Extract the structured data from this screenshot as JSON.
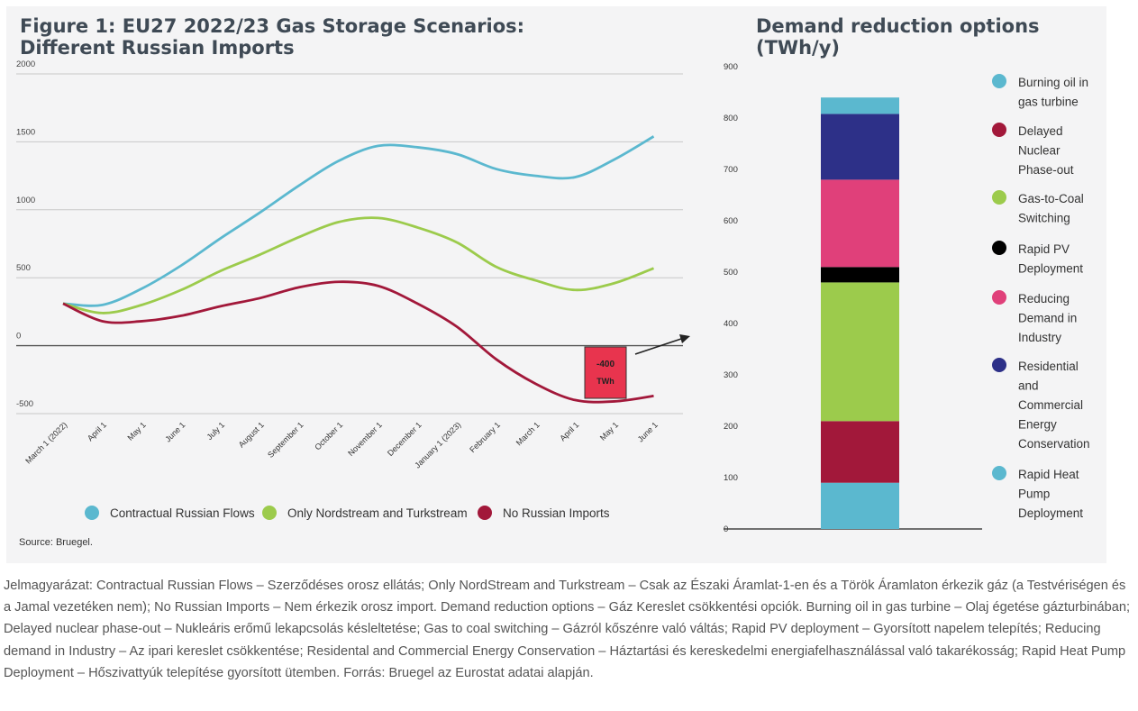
{
  "left_title_line1": "Figure 1: EU27 2022/23 Gas Storage Scenarios:",
  "left_title_line2": "Different Russian Imports",
  "right_title_line1": "Demand reduction options",
  "right_title_line2": "(TWh/y)",
  "source": "Source: Bruegel.",
  "caption": "Jelmagyarázat: Contractual Russian Flows – Szerződéses orosz ellátás; Only NordStream and Turkstream – Csak az Északi Áramlat-1-en és a Török Áramlaton érkezik gáz (a Testvériségen és a Jamal vezetéken nem); No Russian Imports – Nem érkezik orosz import. Demand reduction options – Gáz Kereslet csökkentési opciók. Burning oil in gas turbine – Olaj égetése gázturbinában; Delayed nuclear phase-out – Nukleáris erőmű lekapcsolás késleltetése; Gas to coal switching – Gázról kőszénre való váltás; Rapid PV deployment – Gyorsított napelem telepítés; Reducing demand in Industry – Az ipari kereslet csökkentése; Residental and Commercial Energy Conservation – Háztartási és kereskedelmi energiafelhasználással való takarékosság; Rapid Heat Pump Deployment – Hőszivattyúk telepítése gyorsított ütemben. Forrás: Bruegel az Eurostat adatai alapján.",
  "chart_data": [
    {
      "type": "line",
      "x": [
        "March 1 (2022)",
        "April 1",
        "May 1",
        "June 1",
        "July 1",
        "August 1",
        "September 1",
        "October 1",
        "November 1",
        "December 1",
        "January 1 (2023)",
        "February 1",
        "March 1",
        "April 1",
        "May 1",
        "June 1"
      ],
      "ylim": [
        -500,
        2000
      ],
      "yticks": [
        "2000",
        "1500",
        "1000",
        "500",
        "0",
        "-500"
      ],
      "grid": true,
      "legend_position": "bottom",
      "series": [
        {
          "name": "Contractual Russian Flows",
          "color": "#5bb8cf",
          "values": [
            310,
            300,
            420,
            590,
            790,
            980,
            1180,
            1360,
            1470,
            1460,
            1410,
            1300,
            1250,
            1240,
            1370,
            1540
          ]
        },
        {
          "name": "Only Nordstream and Turkstream",
          "color": "#9ccb4c",
          "values": [
            310,
            240,
            300,
            410,
            550,
            670,
            800,
            910,
            940,
            870,
            760,
            580,
            480,
            410,
            460,
            570
          ]
        },
        {
          "name": "No Russian Imports",
          "color": "#a2183a",
          "values": [
            310,
            180,
            180,
            220,
            290,
            350,
            430,
            470,
            440,
            310,
            140,
            -100,
            -280,
            -400,
            -410,
            -370
          ]
        }
      ],
      "annotation": {
        "line1": "-400",
        "line2": "TWh",
        "color": "#e8344e"
      }
    },
    {
      "type": "bar",
      "stacked": true,
      "ylim": [
        0,
        900
      ],
      "yticks": [
        "900",
        "800",
        "700",
        "600",
        "500",
        "400",
        "300",
        "200",
        "100",
        "0"
      ],
      "grid": false,
      "legend_position": "right",
      "segments": [
        {
          "name": "Rapid Heat Pump Deployment",
          "color": "#5bb8cf",
          "value": 90
        },
        {
          "name": "Delayed Nuclear Phase-out",
          "color": "#a2183a",
          "value": 120
        },
        {
          "name": "Gas-to-Coal Switching",
          "color": "#9ccb4c",
          "value": 270
        },
        {
          "name": "Rapid PV Deployment",
          "color": "#000000",
          "value": 30
        },
        {
          "name": "Reducing Demand in Industry",
          "color": "#e0407a",
          "value": 170
        },
        {
          "name": "Residential and Commercial Energy Conservation",
          "color": "#2d3088",
          "value": 128
        },
        {
          "name": "Burning oil in gas turbine",
          "color": "#5bb8cf",
          "value": 32
        }
      ],
      "legend": [
        {
          "color": "#5bb8cf",
          "lines": [
            "Burning oil in",
            "gas turbine"
          ]
        },
        {
          "color": "#a2183a",
          "lines": [
            "Delayed",
            "Nuclear",
            "Phase-out"
          ]
        },
        {
          "color": "#9ccb4c",
          "lines": [
            "Gas-to-Coal",
            "Switching"
          ]
        },
        {
          "color": "#000000",
          "lines": [
            "Rapid PV",
            "Deployment"
          ]
        },
        {
          "color": "#e0407a",
          "lines": [
            "Reducing",
            "Demand in",
            "Industry"
          ]
        },
        {
          "color": "#2d3088",
          "lines": [
            "Residential",
            "and",
            "Commercial",
            "Energy",
            "Conservation"
          ]
        },
        {
          "color": "#5bb8cf",
          "lines": [
            "Rapid Heat",
            "Pump",
            "Deployment"
          ]
        }
      ]
    }
  ]
}
